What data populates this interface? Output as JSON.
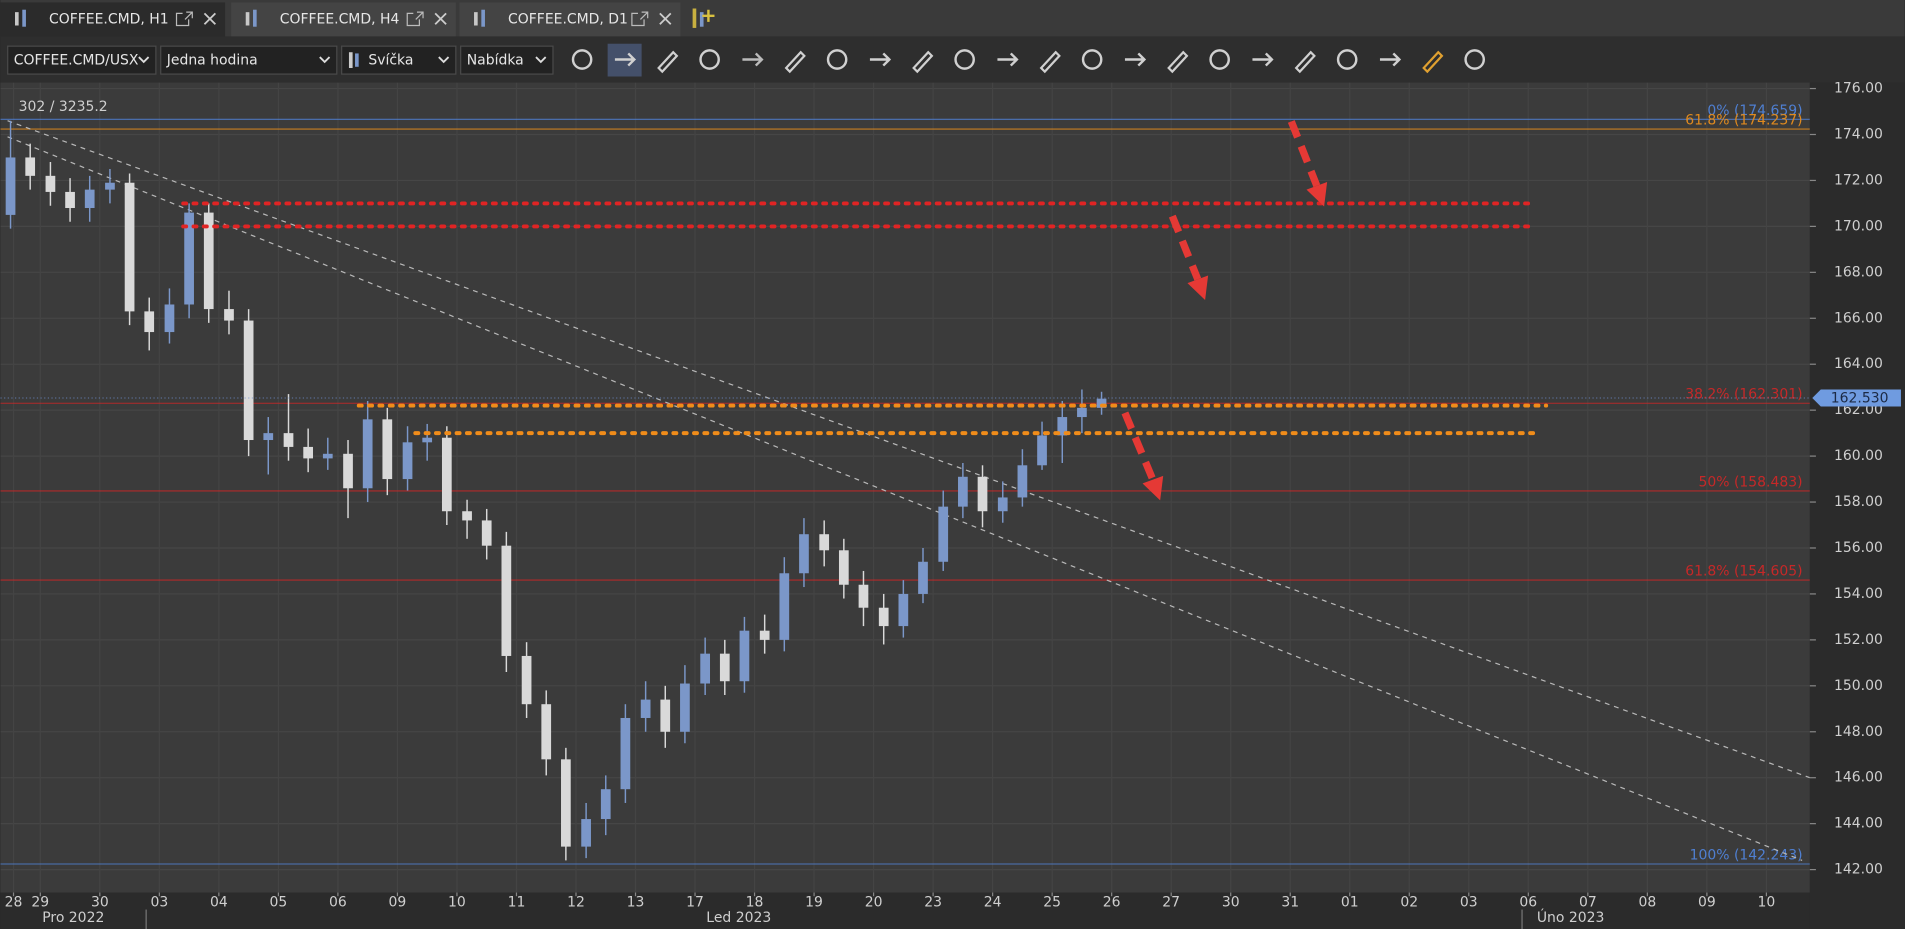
{
  "tabs": [
    "COFFEE.CMD, H1",
    "COFFEE.CMD, H4",
    "COFFEE.CMD, D1"
  ],
  "toolbar": {
    "dropdowns": [
      "COFFEE.CMD/USX",
      "Jedna hodina",
      "Svíčka",
      "Nabídka"
    ]
  },
  "chart_data": {
    "type": "candlestick",
    "info": "302 / 3235.2",
    "x": [
      0.5,
      0.83,
      1.17,
      1.5,
      1.83,
      2.17,
      2.5,
      2.83,
      3.17,
      3.5,
      3.83,
      4.17,
      4.5,
      4.83,
      5.17,
      5.5,
      5.83,
      6.17,
      6.5,
      6.83,
      7.17,
      7.5,
      7.83,
      8.17,
      8.5,
      8.83,
      9.17,
      9.5,
      9.83,
      10.17,
      10.5,
      10.83,
      11.17,
      11.5,
      11.83,
      12.17,
      12.5,
      12.83,
      13.17,
      13.5,
      13.83,
      14.17,
      14.5,
      14.83,
      15.17,
      15.5,
      15.83,
      16.17,
      16.5,
      16.83,
      17.17,
      17.5,
      17.83,
      18.17,
      18.5,
      18.83
    ],
    "open": [
      170.5,
      173.0,
      172.2,
      171.5,
      170.8,
      171.6,
      171.9,
      166.3,
      165.4,
      166.6,
      170.6,
      166.4,
      165.9,
      160.7,
      161.0,
      160.4,
      159.9,
      160.1,
      158.6,
      161.6,
      159.0,
      160.6,
      160.8,
      157.6,
      157.2,
      156.1,
      151.3,
      149.2,
      146.8,
      143.0,
      144.2,
      145.5,
      148.6,
      149.4,
      148.0,
      150.1,
      151.4,
      150.2,
      152.4,
      152.0,
      154.9,
      156.6,
      155.9,
      154.4,
      153.4,
      152.6,
      154.0,
      155.4,
      157.8,
      159.1,
      157.6,
      158.2,
      159.6,
      160.9,
      161.7,
      162.1
    ],
    "high": [
      174.6,
      173.6,
      172.8,
      172.1,
      172.2,
      172.5,
      172.3,
      166.9,
      167.3,
      171.0,
      171.0,
      167.2,
      166.4,
      161.7,
      162.7,
      161.2,
      160.8,
      160.7,
      162.4,
      162.1,
      161.3,
      161.4,
      161.3,
      158.1,
      157.7,
      156.7,
      151.9,
      149.8,
      147.3,
      144.9,
      146.1,
      149.2,
      150.2,
      150.0,
      150.9,
      152.1,
      152.0,
      153.0,
      153.1,
      155.6,
      157.3,
      157.2,
      156.4,
      155.0,
      154.0,
      154.6,
      156.0,
      158.5,
      159.7,
      159.6,
      158.9,
      160.3,
      161.5,
      162.4,
      162.9,
      162.8
    ],
    "low": [
      169.9,
      171.6,
      170.9,
      170.2,
      170.2,
      171.0,
      165.7,
      164.6,
      164.9,
      166.0,
      165.8,
      165.3,
      160.0,
      159.2,
      159.8,
      159.3,
      159.4,
      157.3,
      158.0,
      158.3,
      158.5,
      159.8,
      157.0,
      156.4,
      155.5,
      150.6,
      148.6,
      146.1,
      142.4,
      142.5,
      143.5,
      144.9,
      148.0,
      147.3,
      147.5,
      149.6,
      149.6,
      149.7,
      151.4,
      151.5,
      154.3,
      155.2,
      153.8,
      152.6,
      151.8,
      152.1,
      153.6,
      155.0,
      157.3,
      156.9,
      157.1,
      157.8,
      159.4,
      159.7,
      161.0,
      161.8
    ],
    "close": [
      173.0,
      172.2,
      171.5,
      170.8,
      171.6,
      171.9,
      166.3,
      165.4,
      166.6,
      170.6,
      166.4,
      165.9,
      160.7,
      161.0,
      160.4,
      159.9,
      160.1,
      158.6,
      161.6,
      159.0,
      160.6,
      160.8,
      157.6,
      157.2,
      156.1,
      151.3,
      149.2,
      146.8,
      143.0,
      144.2,
      145.5,
      148.6,
      149.4,
      148.0,
      150.1,
      151.4,
      150.2,
      152.4,
      152.0,
      154.9,
      156.6,
      155.9,
      154.4,
      153.4,
      152.6,
      154.0,
      155.4,
      157.8,
      159.1,
      157.6,
      158.2,
      159.6,
      160.9,
      161.7,
      162.1,
      162.5
    ],
    "up_color": "#7b97c9",
    "down_color": "#d9d9d9",
    "xlim": [
      0.33,
      30.73
    ],
    "ylim": [
      141.0,
      176.26
    ],
    "xticks": [
      {
        "value": 0.55,
        "label": "28"
      },
      {
        "value": 1,
        "label": "29"
      },
      {
        "value": 2,
        "label": "30"
      },
      {
        "value": 3,
        "label": "03"
      },
      {
        "value": 4,
        "label": "04"
      },
      {
        "value": 5,
        "label": "05"
      },
      {
        "value": 6,
        "label": "06"
      },
      {
        "value": 7,
        "label": "09"
      },
      {
        "value": 8,
        "label": "10"
      },
      {
        "value": 9,
        "label": "11"
      },
      {
        "value": 10,
        "label": "12"
      },
      {
        "value": 11,
        "label": "13"
      },
      {
        "value": 12,
        "label": "17"
      },
      {
        "value": 13,
        "label": "18"
      },
      {
        "value": 14,
        "label": "19"
      },
      {
        "value": 15,
        "label": "20"
      },
      {
        "value": 16,
        "label": "23"
      },
      {
        "value": 17,
        "label": "24"
      },
      {
        "value": 18,
        "label": "25"
      },
      {
        "value": 19,
        "label": "26"
      },
      {
        "value": 20,
        "label": "27"
      },
      {
        "value": 21,
        "label": "30"
      },
      {
        "value": 22,
        "label": "31"
      },
      {
        "value": 23,
        "label": "01"
      },
      {
        "value": 24,
        "label": "02"
      },
      {
        "value": 25,
        "label": "03"
      },
      {
        "value": 26,
        "label": "06"
      },
      {
        "value": 27,
        "label": "07"
      },
      {
        "value": 28,
        "label": "08"
      },
      {
        "value": 29,
        "label": "09"
      },
      {
        "value": 30,
        "label": "10"
      }
    ],
    "yticks": [
      {
        "value": 142,
        "label": "142.00"
      },
      {
        "value": 144,
        "label": "144.00"
      },
      {
        "value": 146,
        "label": "146.00"
      },
      {
        "value": 148,
        "label": "148.00"
      },
      {
        "value": 150,
        "label": "150.00"
      },
      {
        "value": 152,
        "label": "152.00"
      },
      {
        "value": 154,
        "label": "154.00"
      },
      {
        "value": 156,
        "label": "156.00"
      },
      {
        "value": 158,
        "label": "158.00"
      },
      {
        "value": 160,
        "label": "160.00"
      },
      {
        "value": 162,
        "label": "162.00"
      },
      {
        "value": 164,
        "label": "164.00"
      },
      {
        "value": 166,
        "label": "166.00"
      },
      {
        "value": 168,
        "label": "168.00"
      },
      {
        "value": 170,
        "label": "170.00"
      },
      {
        "value": 172,
        "label": "172.00"
      },
      {
        "value": 174,
        "label": "174.00"
      },
      {
        "value": 176,
        "label": "176.00"
      }
    ],
    "months": [
      "Pro 2022",
      "Led 2023",
      "Úno 2023"
    ],
    "grid": true,
    "levels": [
      {
        "label": "0% (174.659)",
        "value": 174.659,
        "color": "#4f7fd1"
      },
      {
        "label": "61.8% (174.237)",
        "value": 174.237,
        "color": "#e08a1e"
      },
      {
        "label": "38.2% (162.301)",
        "value": 162.301,
        "color": "#c62828"
      },
      {
        "label": "50% (158.483)",
        "value": 158.483,
        "color": "#c62828"
      },
      {
        "label": "61.8% (154.605)",
        "value": 154.605,
        "color": "#c62828"
      },
      {
        "label": "100% (142.243)",
        "value": 142.243,
        "color": "#4f7fd1"
      }
    ],
    "zones": [
      {
        "value": 171,
        "from": 3.4,
        "to": 26.0,
        "color": "#e02424"
      },
      {
        "value": 170,
        "from": 3.4,
        "to": 26.0,
        "color": "#e02424"
      },
      {
        "value": 162.2,
        "from": 6.35,
        "to": 26.3,
        "color": "#f08c1a"
      },
      {
        "value": 161.0,
        "from": 7.3,
        "to": 26.2,
        "color": "#f08c1a"
      }
    ],
    "trendlines": [
      {
        "x": [
          0.45,
          30.73
        ],
        "y": [
          174.6,
          146.0
        ]
      },
      {
        "x": [
          0.45,
          30.6
        ],
        "y": [
          173.9,
          142.4
        ]
      }
    ],
    "last_price": {
      "value": 162.53,
      "label": "162.530"
    }
  }
}
